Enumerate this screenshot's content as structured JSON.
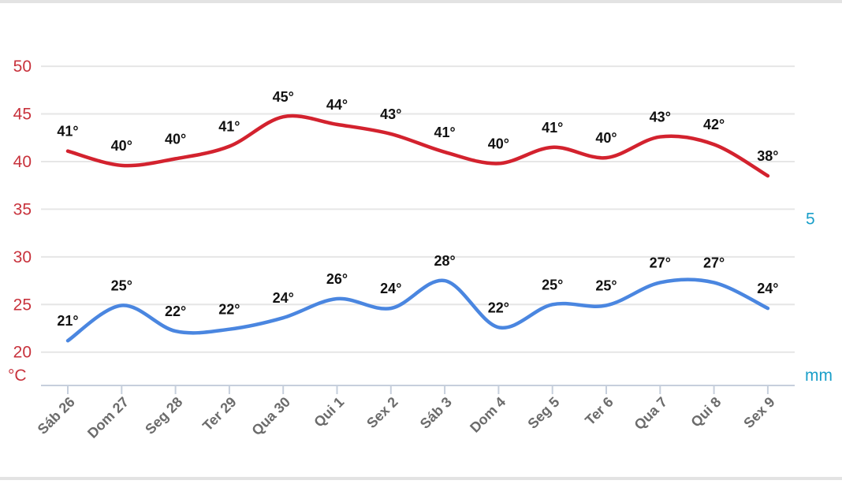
{
  "colors": {
    "max_series": "#d3222e",
    "min_series": "#4a86e0",
    "left_axis_text": "#c8323c",
    "right_axis_text": "#1a9fc9",
    "grid": "#e6e6e6",
    "axis": "#c6cfdc",
    "data_label": "#111111",
    "tick_label": "#6b6b6b"
  },
  "chart_data": {
    "type": "line",
    "categories": [
      "Sáb 26",
      "Dom 27",
      "Seg 28",
      "Ter 29",
      "Qua 30",
      "Qui 1",
      "Sex 2",
      "Sáb 3",
      "Dom 4",
      "Seg 5",
      "Ter 6",
      "Qua 7",
      "Qui 8",
      "Sex 9"
    ],
    "series": [
      {
        "values": [
          41,
          40,
          40,
          41,
          45,
          44,
          43,
          41,
          40,
          41,
          40,
          43,
          42,
          38
        ],
        "plotted": [
          41.1,
          39.6,
          40.3,
          41.6,
          44.7,
          43.9,
          42.9,
          41.0,
          39.8,
          41.5,
          40.4,
          42.6,
          41.8,
          38.5
        ],
        "labels": [
          "41°",
          "40°",
          "40°",
          "41°",
          "45°",
          "44°",
          "43°",
          "41°",
          "40°",
          "41°",
          "40°",
          "43°",
          "42°",
          "38°"
        ],
        "color": "#d3222e"
      },
      {
        "values": [
          21,
          25,
          22,
          22,
          24,
          26,
          24,
          28,
          22,
          25,
          25,
          27,
          27,
          24
        ],
        "plotted": [
          21.2,
          24.9,
          22.2,
          22.4,
          23.6,
          25.6,
          24.6,
          27.5,
          22.6,
          25.0,
          24.9,
          27.3,
          27.3,
          24.6
        ],
        "labels": [
          "21°",
          "25°",
          "22°",
          "22°",
          "24°",
          "26°",
          "24°",
          "28°",
          "22°",
          "25°",
          "25°",
          "27°",
          "27°",
          "24°"
        ],
        "color": "#4a86e0"
      }
    ],
    "y_ticks": [
      "50",
      "45",
      "40",
      "35",
      "30",
      "25",
      "20"
    ],
    "y_tick_values": [
      50,
      45,
      40,
      35,
      30,
      25,
      20
    ],
    "ylim": [
      16.5,
      51.5
    ],
    "ylabel": "°C",
    "right_tick": "5",
    "right_tick_value": 5,
    "right_ylim": [
      0,
      10
    ],
    "right_label": "mm",
    "grid": true
  }
}
